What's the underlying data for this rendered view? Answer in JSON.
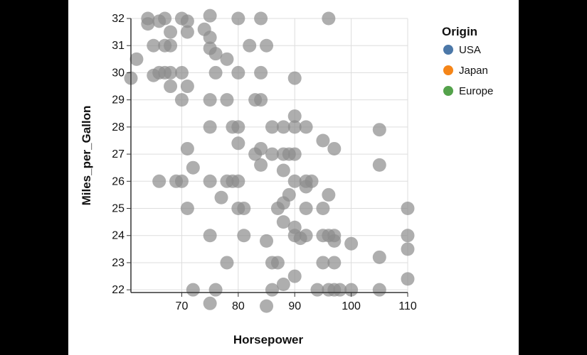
{
  "chart_data": {
    "type": "scatter",
    "xlabel": "Horsepower",
    "ylabel": "Miles_per_Gallon",
    "xlim": [
      61,
      110
    ],
    "ylim": [
      21.9,
      32
    ],
    "xticks": [
      70,
      80,
      90,
      100,
      110
    ],
    "yticks": [
      22,
      23,
      24,
      25,
      26,
      27,
      28,
      29,
      30,
      31,
      32
    ],
    "grid": true,
    "point_color": "#8c8c8c",
    "legend": {
      "title": "Origin",
      "position": "right",
      "items": [
        {
          "label": "USA",
          "color": "#4c78a8"
        },
        {
          "label": "Japan",
          "color": "#f58518"
        },
        {
          "label": "Europe",
          "color": "#54a24b"
        }
      ]
    },
    "points": [
      [
        61,
        29.8
      ],
      [
        62,
        30.5
      ],
      [
        64,
        31.8
      ],
      [
        64,
        32
      ],
      [
        65,
        31
      ],
      [
        65,
        29.9
      ],
      [
        66,
        31.9
      ],
      [
        66,
        30
      ],
      [
        66,
        26
      ],
      [
        67,
        32
      ],
      [
        67,
        31
      ],
      [
        67,
        30
      ],
      [
        68,
        31.5
      ],
      [
        68,
        30
      ],
      [
        68,
        31
      ],
      [
        68,
        29.5
      ],
      [
        69,
        26
      ],
      [
        70,
        26
      ],
      [
        70,
        30
      ],
      [
        70,
        29
      ],
      [
        70,
        32
      ],
      [
        71,
        31.5
      ],
      [
        71,
        29.5
      ],
      [
        71,
        31.9
      ],
      [
        71,
        25
      ],
      [
        71,
        27.2
      ],
      [
        72,
        26.5
      ],
      [
        72,
        22
      ],
      [
        74,
        31.6
      ],
      [
        75,
        32.1
      ],
      [
        75,
        31.3
      ],
      [
        75,
        30.9
      ],
      [
        75,
        29
      ],
      [
        75,
        28
      ],
      [
        75,
        26
      ],
      [
        75,
        24
      ],
      [
        75,
        21.5
      ],
      [
        76,
        30.7
      ],
      [
        76,
        30
      ],
      [
        76,
        22
      ],
      [
        77,
        25.4
      ],
      [
        78,
        30.5
      ],
      [
        78,
        29
      ],
      [
        78,
        26
      ],
      [
        78,
        23
      ],
      [
        79,
        28
      ],
      [
        79,
        26
      ],
      [
        80,
        32
      ],
      [
        80,
        30
      ],
      [
        80,
        28
      ],
      [
        80,
        27.4
      ],
      [
        80,
        26
      ],
      [
        80,
        25
      ],
      [
        81,
        25
      ],
      [
        81,
        24
      ],
      [
        82,
        31
      ],
      [
        83,
        29
      ],
      [
        83,
        27
      ],
      [
        84,
        32
      ],
      [
        84,
        30
      ],
      [
        84,
        29
      ],
      [
        84,
        27.2
      ],
      [
        84,
        26.6
      ],
      [
        85,
        31
      ],
      [
        85,
        23.8
      ],
      [
        85,
        21.4
      ],
      [
        86,
        28
      ],
      [
        86,
        27
      ],
      [
        86,
        23
      ],
      [
        86,
        22
      ],
      [
        87,
        25
      ],
      [
        87,
        23
      ],
      [
        88,
        28
      ],
      [
        88,
        27
      ],
      [
        88,
        26.4
      ],
      [
        88,
        25.2
      ],
      [
        88,
        24.5
      ],
      [
        88,
        22.2
      ],
      [
        89,
        27
      ],
      [
        89,
        25.5
      ],
      [
        90,
        29.8
      ],
      [
        90,
        28.4
      ],
      [
        90,
        28
      ],
      [
        90,
        27
      ],
      [
        90,
        26
      ],
      [
        90,
        24.3
      ],
      [
        90,
        24
      ],
      [
        90,
        22.5
      ],
      [
        91,
        23.9
      ],
      [
        92,
        28
      ],
      [
        92,
        26
      ],
      [
        92,
        25.8
      ],
      [
        92,
        25
      ],
      [
        92,
        24
      ],
      [
        93,
        26
      ],
      [
        94,
        22
      ],
      [
        95,
        27.5
      ],
      [
        95,
        25
      ],
      [
        95,
        24
      ],
      [
        95,
        23
      ],
      [
        96,
        32
      ],
      [
        96,
        25.5
      ],
      [
        96,
        24
      ],
      [
        96,
        22
      ],
      [
        97,
        27.2
      ],
      [
        97,
        24
      ],
      [
        97,
        23.8
      ],
      [
        97,
        23
      ],
      [
        97,
        22
      ],
      [
        98,
        22
      ],
      [
        100,
        23.7
      ],
      [
        100,
        22
      ],
      [
        105,
        27.9
      ],
      [
        105,
        26.6
      ],
      [
        105,
        23.2
      ],
      [
        105,
        22
      ],
      [
        110,
        25
      ],
      [
        110,
        24
      ],
      [
        110,
        23.5
      ],
      [
        110,
        22.4
      ]
    ]
  }
}
